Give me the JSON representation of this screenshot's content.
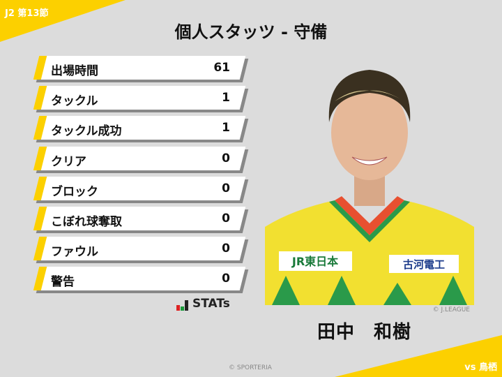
{
  "header": {
    "round": "J2 第13節",
    "title": "個人スタッツ - 守備"
  },
  "stats": [
    {
      "label": "出場時間",
      "value": "61"
    },
    {
      "label": "タックル",
      "value": "1"
    },
    {
      "label": "タックル成功",
      "value": "1"
    },
    {
      "label": "クリア",
      "value": "0"
    },
    {
      "label": "ブロック",
      "value": "0"
    },
    {
      "label": "こぼれ球奪取",
      "value": "0"
    },
    {
      "label": "ファウル",
      "value": "0"
    },
    {
      "label": "警告",
      "value": "0"
    }
  ],
  "logo": {
    "text": "STATs"
  },
  "player": {
    "name": "田中　和樹",
    "photo_credit": "© J.LEAGUE",
    "sponsor1": "JR東日本",
    "sponsor2": "古河電工"
  },
  "footer": {
    "copyright": "© SPORTERIA",
    "opponent": "vs 鳥栖"
  },
  "colors": {
    "accent": "#fcd000",
    "background": "#dcdcdc"
  }
}
